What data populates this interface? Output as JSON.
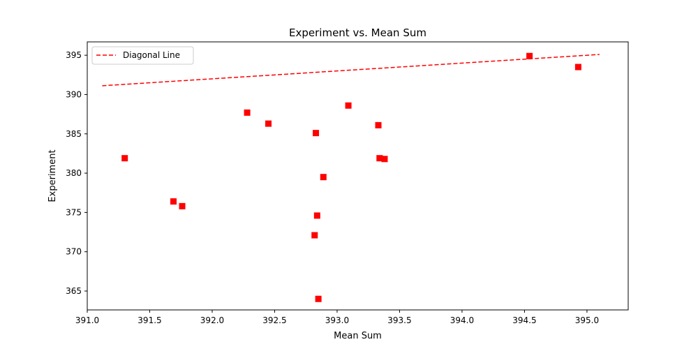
{
  "chart_data": {
    "type": "scatter",
    "title": "Experiment vs. Mean Sum",
    "xlabel": "Mean Sum",
    "ylabel": "Experiment",
    "xlim": [
      391.0,
      395.33
    ],
    "ylim": [
      362.6,
      396.7
    ],
    "xticks": [
      391.0,
      391.5,
      392.0,
      392.5,
      393.0,
      393.5,
      394.0,
      394.5,
      395.0
    ],
    "xtick_labels": [
      "391.0",
      "391.5",
      "392.0",
      "392.5",
      "393.0",
      "393.5",
      "394.0",
      "394.5",
      "395.0"
    ],
    "yticks": [
      365,
      370,
      375,
      380,
      385,
      390,
      395
    ],
    "ytick_labels": [
      "365",
      "370",
      "375",
      "380",
      "385",
      "390",
      "395"
    ],
    "grid": false,
    "legend_position": "upper-left",
    "series": [
      {
        "kind": "scatter",
        "marker": "square",
        "color": "#ff0000",
        "points": [
          {
            "x": 391.3,
            "y": 381.9
          },
          {
            "x": 391.69,
            "y": 376.4
          },
          {
            "x": 391.76,
            "y": 375.8
          },
          {
            "x": 392.28,
            "y": 387.7
          },
          {
            "x": 392.45,
            "y": 386.3
          },
          {
            "x": 392.82,
            "y": 372.1
          },
          {
            "x": 392.83,
            "y": 385.1
          },
          {
            "x": 392.84,
            "y": 374.6
          },
          {
            "x": 392.85,
            "y": 364.0
          },
          {
            "x": 392.89,
            "y": 379.5
          },
          {
            "x": 393.09,
            "y": 388.6
          },
          {
            "x": 393.33,
            "y": 386.1
          },
          {
            "x": 393.34,
            "y": 381.9
          },
          {
            "x": 393.38,
            "y": 381.8
          },
          {
            "x": 394.54,
            "y": 394.9
          },
          {
            "x": 394.93,
            "y": 393.5
          }
        ]
      },
      {
        "name": "Diagonal Line",
        "kind": "line",
        "style": "dashed",
        "color": "#ff0000",
        "x": [
          391.12,
          395.1
        ],
        "y": [
          391.12,
          395.1
        ]
      }
    ]
  }
}
